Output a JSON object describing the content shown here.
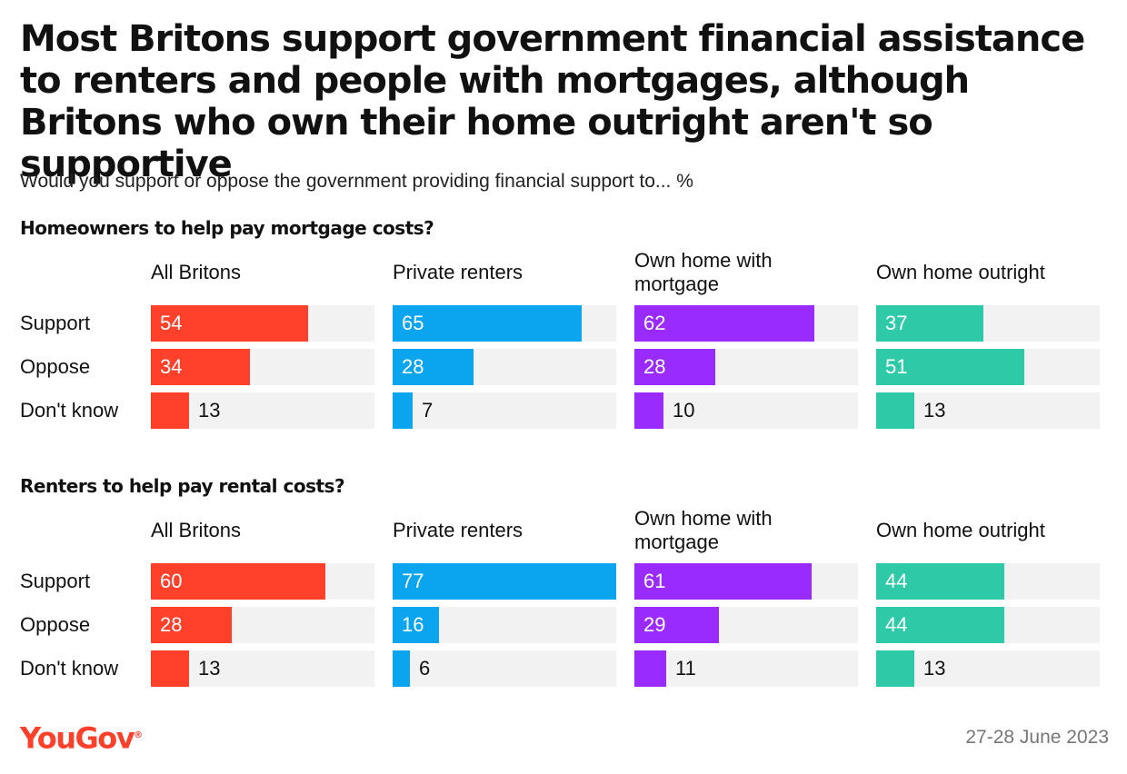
{
  "title": "Most Britons support government financial assistance to renters and people with mortgages, although Britons who own their home outright aren't so supportive",
  "subtitle": "Would you support or oppose the government providing financial support to... %",
  "brand": {
    "logo": "YouGov",
    "color": "#ff412c"
  },
  "date": "27-28 June 2023",
  "chart_data": {
    "type": "bar",
    "orientation": "horizontal",
    "xlim": [
      0,
      100
    ],
    "unit": "%",
    "groups": [
      {
        "name": "All Britons",
        "color": "#ff412c"
      },
      {
        "name": "Private renters",
        "color": "#0aa5ee"
      },
      {
        "name": "Own home with mortgage",
        "color": "#9a2bff"
      },
      {
        "name": "Own home outright",
        "color": "#2ecaa8"
      }
    ],
    "categories": [
      "Support",
      "Oppose",
      "Don't know"
    ],
    "panels": [
      {
        "title": "Homeowners to help pay mortgage costs?",
        "values": [
          [
            54,
            34,
            13
          ],
          [
            65,
            28,
            7
          ],
          [
            62,
            28,
            10
          ],
          [
            37,
            51,
            13
          ]
        ]
      },
      {
        "title": "Renters to help pay rental costs?",
        "values": [
          [
            60,
            28,
            13
          ],
          [
            77,
            16,
            6
          ],
          [
            61,
            29,
            11
          ],
          [
            44,
            44,
            13
          ]
        ]
      }
    ]
  }
}
